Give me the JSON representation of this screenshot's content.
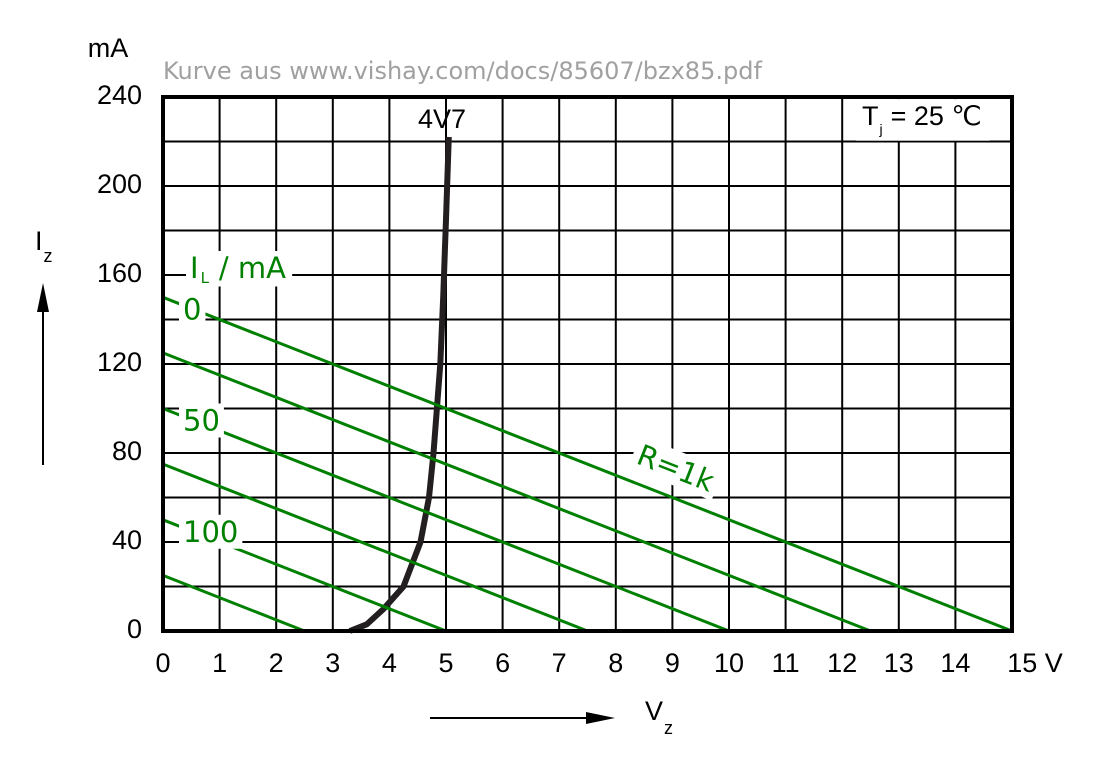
{
  "chart_data": {
    "type": "line",
    "source": "Kurve aus www.vishay.com/docs/85607/bzx85.pdf",
    "y_unit": "mA",
    "y_label": {
      "main": "I",
      "sub": "z"
    },
    "x_label": {
      "main": "V",
      "sub": "z"
    },
    "condition": {
      "main": "T",
      "sub": "j",
      "rest": "= 25 ℃"
    },
    "legend_title": {
      "main": "I",
      "sub": "L",
      "rest": "/ mA"
    },
    "annotation": "R=1k",
    "xlim": [
      0,
      15
    ],
    "ylim": [
      0,
      240
    ],
    "xticks": [
      0,
      1,
      2,
      3,
      4,
      5,
      6,
      7,
      8,
      9,
      10,
      11,
      12,
      13,
      14,
      {
        "value": 15,
        "label": "15 V"
      }
    ],
    "yticks": [
      0,
      40,
      80,
      120,
      160,
      200,
      240
    ],
    "yminor": [
      20,
      60,
      100,
      140,
      180,
      220
    ],
    "grid": true,
    "series": [
      {
        "name": "4V7",
        "color": "#231f20",
        "x": [
          3.3,
          3.6,
          3.9,
          4.25,
          4.55,
          4.7,
          4.78,
          4.84,
          4.9,
          4.95,
          5.0,
          5.05
        ],
        "values": [
          0,
          3,
          10,
          20,
          40,
          60,
          80,
          100,
          120,
          150,
          185,
          222
        ]
      },
      {
        "name": "0",
        "color": "#008000",
        "x": [
          0,
          15
        ],
        "values": [
          150,
          0
        ]
      },
      {
        "color": "#008000",
        "x": [
          0,
          12.5
        ],
        "values": [
          125,
          0
        ]
      },
      {
        "name": "50",
        "color": "#008000",
        "x": [
          0,
          10
        ],
        "values": [
          100,
          0
        ]
      },
      {
        "color": "#008000",
        "x": [
          0,
          7.5
        ],
        "values": [
          75,
          0
        ]
      },
      {
        "name": "100",
        "color": "#008000",
        "x": [
          0,
          5
        ],
        "values": [
          50,
          0
        ]
      },
      {
        "color": "#008000",
        "x": [
          0,
          2.5
        ],
        "values": [
          25,
          0
        ]
      }
    ]
  }
}
